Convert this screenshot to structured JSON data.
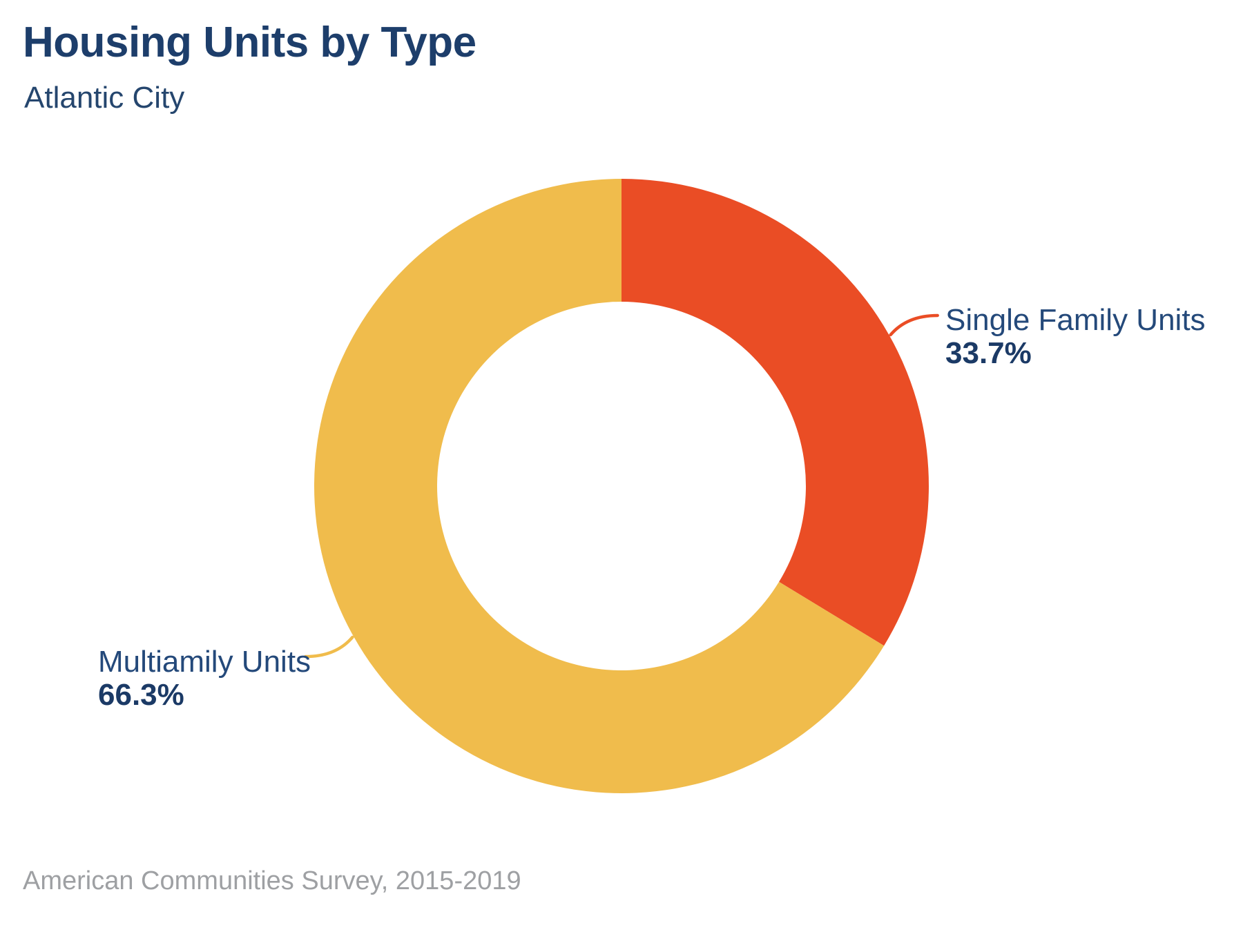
{
  "header": {
    "title": "Housing Units by Type",
    "subtitle": "Atlantic City"
  },
  "footer": {
    "source": "American Communities Survey, 2015-2019"
  },
  "chart_data": {
    "type": "pie",
    "variant": "donut",
    "title": "Housing Units by Type",
    "subtitle": "Atlantic City",
    "source": "American Communities Survey, 2015-2019",
    "categories": [
      "Single Family Units",
      "Multiamily Units"
    ],
    "values": [
      33.7,
      66.3
    ],
    "unit": "%",
    "start_angle_deg": 0,
    "clockwise": true,
    "inner_radius_ratio": 0.6,
    "legend_position": "callout-labels",
    "slices": [
      {
        "label": "Single Family Units",
        "value": 33.7,
        "display": "33.7%",
        "color": "#EA4D25",
        "side": "right"
      },
      {
        "label": "Multiamily Units",
        "value": 66.3,
        "display": "66.3%",
        "color": "#F0BC4C",
        "side": "left"
      }
    ],
    "colors": {
      "single_family": "#EA4D25",
      "multifamily": "#F0BC4C",
      "label_text": "#24497A",
      "value_text": "#1B3A66",
      "title_text": "#1D3E6B",
      "source_text": "#9EA0A3"
    }
  }
}
